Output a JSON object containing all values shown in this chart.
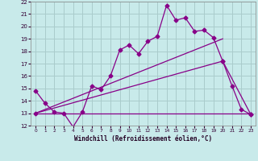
{
  "xlabel": "Windchill (Refroidissement éolien,°C)",
  "background_color": "#c8eaea",
  "line_color": "#880088",
  "grid_color": "#aacccc",
  "xlim": [
    -0.5,
    23.5
  ],
  "ylim": [
    12,
    22
  ],
  "yticks": [
    12,
    13,
    14,
    15,
    16,
    17,
    18,
    19,
    20,
    21,
    22
  ],
  "xticks": [
    0,
    1,
    2,
    3,
    4,
    5,
    6,
    7,
    8,
    9,
    10,
    11,
    12,
    13,
    14,
    15,
    16,
    17,
    18,
    19,
    20,
    21,
    22,
    23
  ],
  "line1_x": [
    0,
    1,
    2,
    3,
    4,
    5,
    6,
    7,
    8,
    9,
    10,
    11,
    12,
    13,
    14,
    15,
    16,
    17,
    18,
    19,
    20,
    21,
    22,
    23
  ],
  "line1_y": [
    14.8,
    13.8,
    13.1,
    13.0,
    11.9,
    13.1,
    15.2,
    14.9,
    16.0,
    18.1,
    18.5,
    17.8,
    18.8,
    19.2,
    21.7,
    20.5,
    20.7,
    19.6,
    19.7,
    19.1,
    17.2,
    15.2,
    13.3,
    12.9
  ],
  "line2_x": [
    0,
    23
  ],
  "line2_y": [
    13.0,
    13.0
  ],
  "line3_x": [
    0,
    20,
    23
  ],
  "line3_y": [
    13.0,
    17.2,
    12.9
  ],
  "line4_x": [
    0,
    20
  ],
  "line4_y": [
    13.0,
    19.0
  ]
}
